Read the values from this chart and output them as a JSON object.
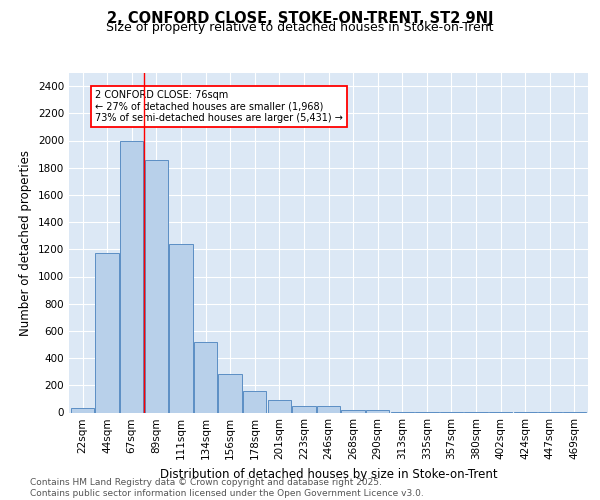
{
  "title": "2, CONFORD CLOSE, STOKE-ON-TRENT, ST2 9NJ",
  "subtitle": "Size of property relative to detached houses in Stoke-on-Trent",
  "xlabel": "Distribution of detached houses by size in Stoke-on-Trent",
  "ylabel": "Number of detached properties",
  "categories": [
    "22sqm",
    "44sqm",
    "67sqm",
    "89sqm",
    "111sqm",
    "134sqm",
    "156sqm",
    "178sqm",
    "201sqm",
    "223sqm",
    "246sqm",
    "268sqm",
    "290sqm",
    "313sqm",
    "335sqm",
    "357sqm",
    "380sqm",
    "402sqm",
    "424sqm",
    "447sqm",
    "469sqm"
  ],
  "values": [
    30,
    1175,
    2000,
    1860,
    1240,
    520,
    280,
    155,
    95,
    45,
    45,
    20,
    15,
    5,
    3,
    2,
    2,
    2,
    2,
    2,
    5
  ],
  "bar_color": "#b8d0ea",
  "bar_edge_color": "#5b8ec4",
  "bar_linewidth": 0.7,
  "red_line_x": 2.5,
  "annotation_text": "2 CONFORD CLOSE: 76sqm\n← 27% of detached houses are smaller (1,968)\n73% of semi-detached houses are larger (5,431) →",
  "annotation_box_color": "white",
  "annotation_box_edge": "red",
  "background_color": "#dce8f5",
  "grid_color": "white",
  "footer_line1": "Contains HM Land Registry data © Crown copyright and database right 2025.",
  "footer_line2": "Contains public sector information licensed under the Open Government Licence v3.0.",
  "ylim": [
    0,
    2500
  ],
  "yticks": [
    0,
    200,
    400,
    600,
    800,
    1000,
    1200,
    1400,
    1600,
    1800,
    2000,
    2200,
    2400
  ],
  "title_fontsize": 10.5,
  "subtitle_fontsize": 9,
  "xlabel_fontsize": 8.5,
  "ylabel_fontsize": 8.5,
  "tick_fontsize": 7.5,
  "footer_fontsize": 6.5
}
